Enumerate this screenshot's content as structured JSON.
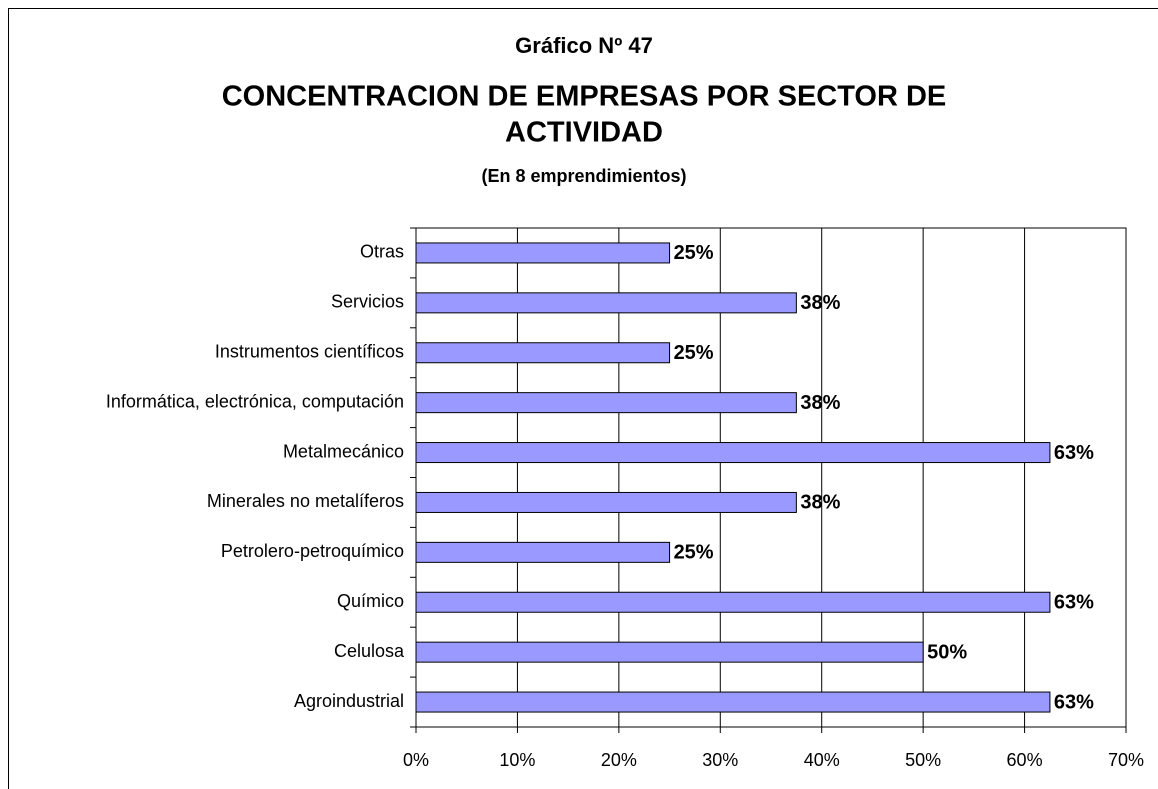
{
  "chart_data": {
    "type": "barh",
    "supertitle": "Gráfico Nº 47",
    "title_lines": [
      "CONCENTRACION DE EMPRESAS POR SECTOR DE",
      "ACTIVIDAD"
    ],
    "subtitle": "(En 8 emprendimientos)",
    "categories": [
      "Agroindustrial",
      "Celulosa",
      "Químico",
      "Petrolero-petroquímico",
      "Minerales no metalíferos",
      "Metalmecánico",
      "Informática, electrónica, computación",
      "Instrumentos científicos",
      "Servicios",
      "Otras"
    ],
    "values": [
      62.5,
      50,
      62.5,
      25,
      37.5,
      62.5,
      37.5,
      25,
      37.5,
      25
    ],
    "value_labels": [
      "63%",
      "50%",
      "63%",
      "25%",
      "38%",
      "63%",
      "38%",
      "25%",
      "38%",
      "25%"
    ],
    "color": "#9999ff",
    "xlim": [
      0,
      70
    ],
    "xticks": [
      {
        "value": 0,
        "label": "0%"
      },
      {
        "value": 10,
        "label": "10%"
      },
      {
        "value": 20,
        "label": "20%"
      },
      {
        "value": 30,
        "label": "30%"
      },
      {
        "value": 40,
        "label": "40%"
      },
      {
        "value": 50,
        "label": "50%"
      },
      {
        "value": 60,
        "label": "60%"
      },
      {
        "value": 70,
        "label": "70%"
      }
    ],
    "grid": true
  }
}
